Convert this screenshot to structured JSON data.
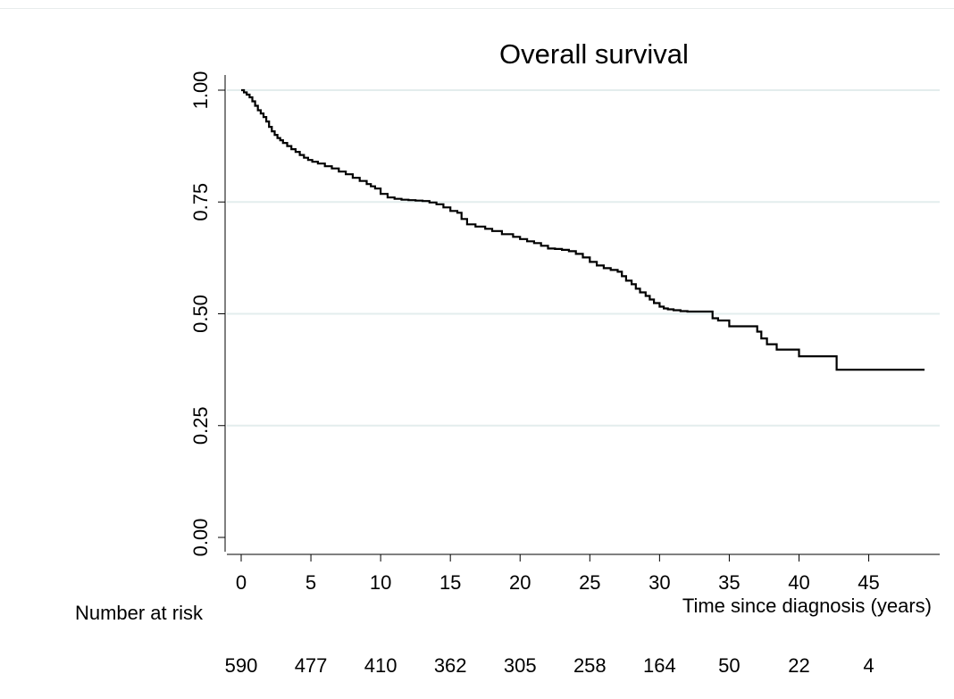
{
  "chart_data": {
    "type": "line",
    "title": "Overall survival",
    "xlabel": "Time since diagnosis (years)",
    "ylabel": "",
    "xlim": [
      0,
      49
    ],
    "ylim": [
      0,
      1
    ],
    "x_ticks": [
      0,
      5,
      10,
      15,
      20,
      25,
      30,
      35,
      40,
      45
    ],
    "x_tick_labels": [
      "0",
      "5",
      "10",
      "15",
      "20",
      "25",
      "30",
      "35",
      "40",
      "45"
    ],
    "y_ticks": [
      0,
      0.25,
      0.5,
      0.75,
      1
    ],
    "y_tick_labels": [
      "0.00",
      "0.25",
      "0.50",
      "0.75",
      "1.00"
    ],
    "grid": "horizontal",
    "line_color": "#000000",
    "grid_color": "#e3eded",
    "series": [
      {
        "step": true,
        "x": [
          0,
          0.2,
          0.4,
          0.6,
          0.8,
          1.0,
          1.2,
          1.4,
          1.6,
          1.8,
          2.0,
          2.2,
          2.4,
          2.6,
          2.8,
          3.0,
          3.3,
          3.6,
          3.9,
          4.2,
          4.5,
          4.8,
          5.1,
          5.5,
          6.0,
          6.5,
          7.0,
          7.5,
          8.0,
          8.5,
          9.0,
          9.3,
          9.6,
          10.0,
          10.5,
          11.0,
          11.5,
          12.0,
          12.5,
          13.0,
          13.5,
          14.0,
          14.5,
          15.0,
          15.5,
          15.8,
          16.2,
          16.8,
          17.5,
          18.0,
          18.7,
          19.5,
          20.0,
          20.5,
          21.0,
          21.5,
          22.0,
          22.5,
          23.0,
          23.5,
          24.0,
          24.5,
          25.0,
          25.5,
          26.0,
          26.5,
          27.0,
          27.3,
          27.6,
          28.0,
          28.3,
          28.6,
          29.0,
          29.3,
          29.6,
          30.0,
          30.3,
          30.6,
          31.0,
          31.5,
          32.0,
          33.0,
          33.8,
          34.2,
          35.0,
          35.5,
          37.0,
          37.3,
          37.7,
          38.4,
          40.0,
          42.7,
          49.0
        ],
        "y": [
          1.0,
          0.995,
          0.99,
          0.984,
          0.975,
          0.965,
          0.955,
          0.948,
          0.94,
          0.93,
          0.918,
          0.908,
          0.9,
          0.893,
          0.888,
          0.882,
          0.875,
          0.868,
          0.862,
          0.855,
          0.849,
          0.844,
          0.84,
          0.836,
          0.83,
          0.825,
          0.818,
          0.812,
          0.804,
          0.797,
          0.79,
          0.785,
          0.78,
          0.768,
          0.76,
          0.757,
          0.755,
          0.754,
          0.753,
          0.752,
          0.749,
          0.745,
          0.738,
          0.73,
          0.726,
          0.712,
          0.7,
          0.695,
          0.69,
          0.685,
          0.678,
          0.672,
          0.667,
          0.662,
          0.658,
          0.652,
          0.646,
          0.645,
          0.643,
          0.64,
          0.634,
          0.626,
          0.616,
          0.608,
          0.602,
          0.598,
          0.594,
          0.584,
          0.574,
          0.566,
          0.556,
          0.548,
          0.54,
          0.532,
          0.524,
          0.516,
          0.512,
          0.51,
          0.508,
          0.506,
          0.505,
          0.505,
          0.49,
          0.485,
          0.472,
          0.472,
          0.46,
          0.445,
          0.432,
          0.42,
          0.405,
          0.375,
          0.375
        ]
      }
    ],
    "risk_table": {
      "label": "Number at risk",
      "times": [
        0,
        5,
        10,
        15,
        20,
        25,
        30,
        35,
        40,
        45
      ],
      "values": [
        "590",
        "477",
        "410",
        "362",
        "305",
        "258",
        "164",
        "50",
        "22",
        "4"
      ]
    }
  }
}
